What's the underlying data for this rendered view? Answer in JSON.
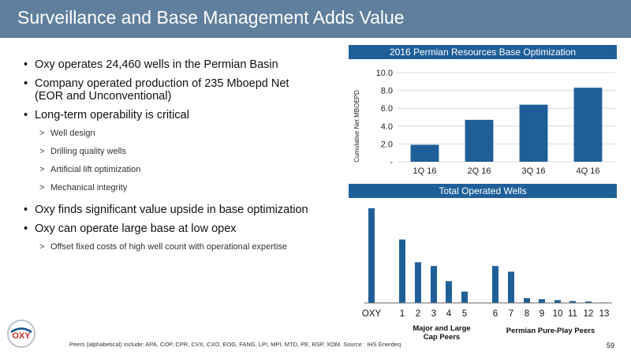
{
  "slide": {
    "title": "Surveillance and Base Management Adds Value",
    "page_number": "59",
    "footnote": "Peers (alphabetical) include: APA, COP, CPR, CVX, CXO, EOG, FANG, LPI, MPI, MTD, PE, RSP, XOM.  Source : IHS Enerdeq",
    "logo_text": "OXY"
  },
  "bullets": {
    "b1": "Oxy operates 24,460 wells in the Permian Basin",
    "b2": "Company operated production of 235 Mboepd Net (EOR and Unconventional)",
    "b3": "Long-term operability is critical",
    "b3_subs": [
      "Well design",
      "Drilling quality wells",
      "Artificial lift optimization",
      "Mechanical integrity"
    ],
    "b4": "Oxy finds significant value upside in base optimization",
    "b5": "Oxy can operate large base at low opex",
    "b5_subs": [
      "Offset fixed costs of high well count with operational expertise"
    ]
  },
  "chart_data": [
    {
      "type": "bar",
      "title": "2016 Permian Resources Base Optimization",
      "ylabel": "Cumulative Net MBOEPD",
      "xlabel": "",
      "categories": [
        "1Q 16",
        "2Q 16",
        "3Q 16",
        "4Q 16"
      ],
      "values": [
        1.9,
        4.7,
        6.4,
        8.3
      ],
      "ylim": [
        0,
        10
      ],
      "yticks": [
        "-",
        "2.0",
        "4.0",
        "6.0",
        "8.0",
        "10.0"
      ],
      "grid": true,
      "bar_color": "#1f5f99"
    },
    {
      "type": "bar",
      "title": "Total Operated Wells",
      "categories": [
        "OXY",
        "1",
        "2",
        "3",
        "4",
        "5",
        "6",
        "7",
        "8",
        "9",
        "10",
        "11",
        "12",
        "13"
      ],
      "values": [
        100,
        67,
        43,
        39,
        23,
        12,
        39,
        33,
        5,
        4,
        3,
        2,
        1.5,
        0.5
      ],
      "ylim": [
        0,
        100
      ],
      "group_labels": [
        "Major and Large Cap Peers",
        "Permian Pure-Play Peers"
      ],
      "grid": false,
      "bar_color": "#1f5f99"
    }
  ]
}
